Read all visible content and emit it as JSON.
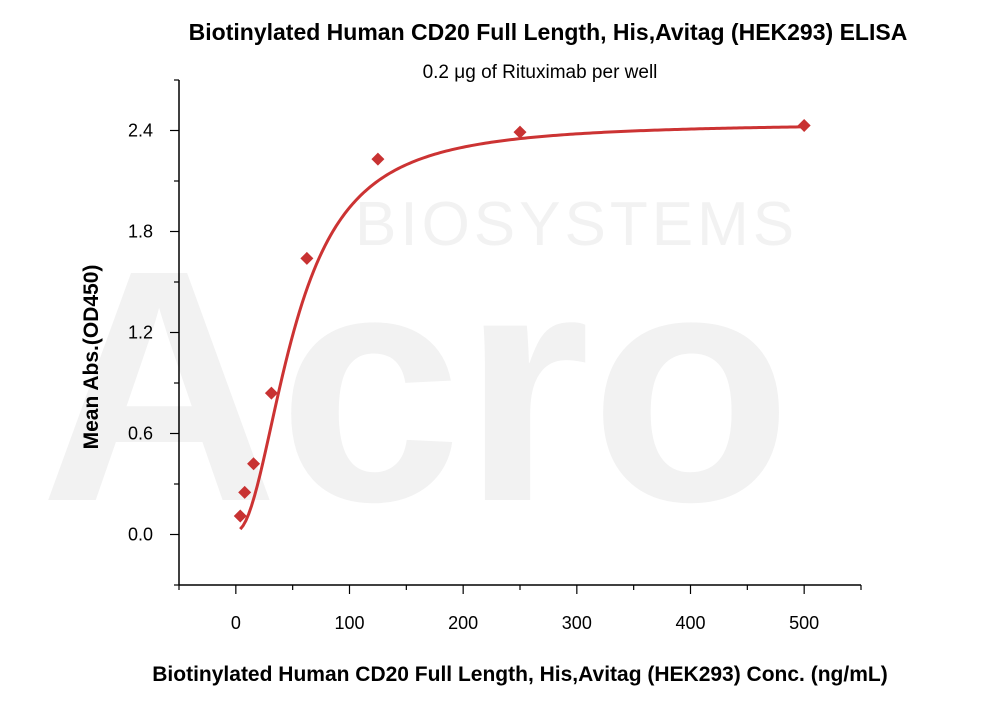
{
  "chart_data": {
    "type": "scatter",
    "title": "Biotinylated Human CD20 Full Length, His,Avitag (HEK293) ELISA",
    "subtitle": "0.2 μg of Rituximab per well",
    "xlabel": "Biotinylated Human CD20 Full Length, His,Avitag (HEK293) Conc. (ng/mL)",
    "ylabel": "Mean Abs.(OD450)",
    "xlim": [
      -50,
      550
    ],
    "ylim": [
      -0.3,
      2.7
    ],
    "xticks": [
      0,
      100,
      200,
      300,
      400,
      500
    ],
    "yticks": [
      0.0,
      0.6,
      1.2,
      1.8,
      2.4
    ],
    "xtick_labels": [
      "0",
      "100",
      "200",
      "300",
      "400",
      "500"
    ],
    "ytick_labels": [
      "0.0",
      "0.6",
      "1.2",
      "1.8",
      "2.4"
    ],
    "grid": false,
    "series": [
      {
        "color": "#c83232",
        "marker": "diamond",
        "fit": "four-parameter logistic",
        "x": [
          3.9,
          7.8,
          15.6,
          31.3,
          62.5,
          125,
          250,
          500
        ],
        "y": [
          0.11,
          0.25,
          0.42,
          0.84,
          1.64,
          2.23,
          2.39,
          2.43
        ]
      }
    ]
  },
  "watermark": {
    "line1": "BIOSYSTEMS",
    "logo": "Acro"
  }
}
